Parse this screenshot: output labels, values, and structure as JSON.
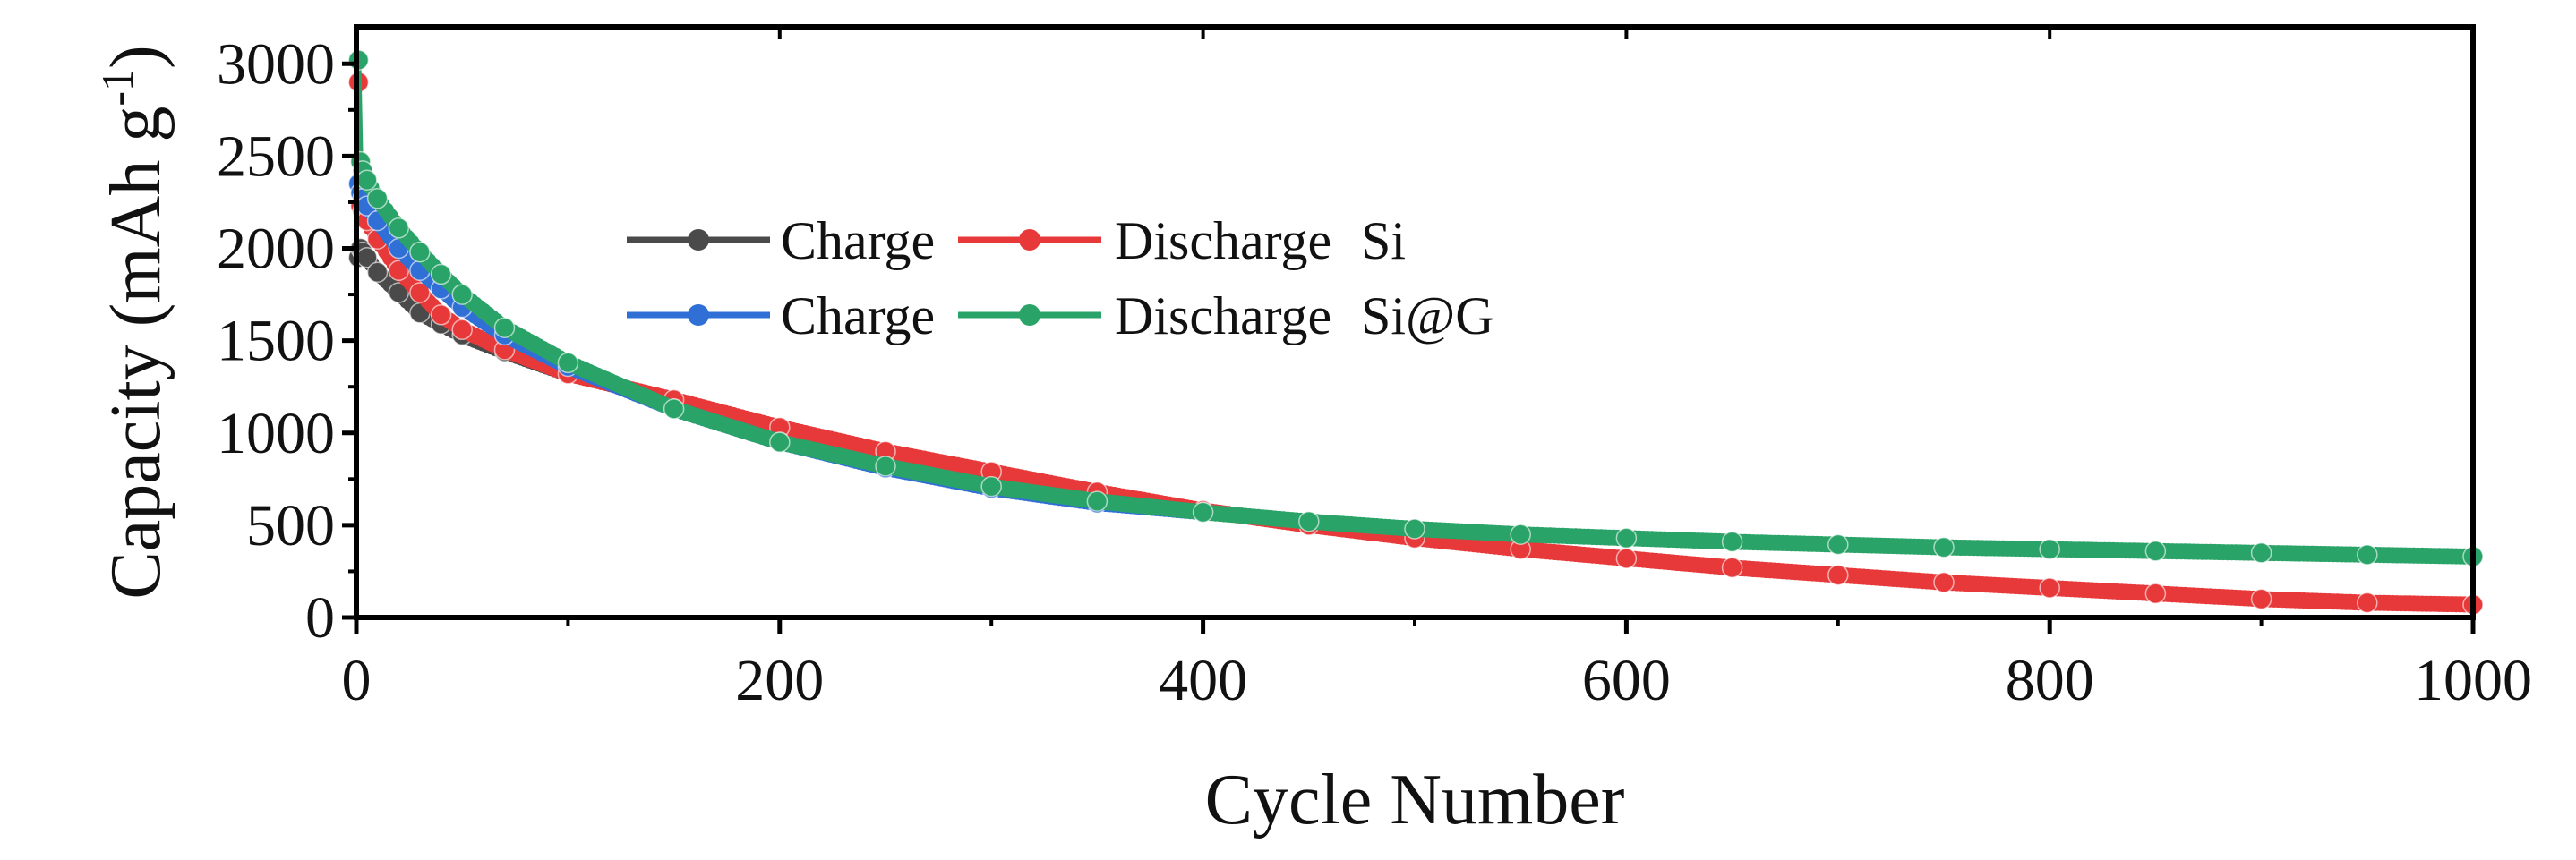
{
  "chart_data": {
    "type": "scatter",
    "title": "",
    "xlabel": "Cycle Number",
    "ylabel": {
      "main": "Capacity (mAh g",
      "sup": "-1",
      "close": ")"
    },
    "xlim": [
      0,
      1000
    ],
    "ylim": [
      0,
      3200
    ],
    "xticks": [
      0,
      200,
      400,
      600,
      800,
      1000
    ],
    "yticks": [
      0,
      500,
      1000,
      1500,
      2000,
      2500,
      3000
    ],
    "grid": false,
    "legend_position": "upper-left-center",
    "legend_groups": [
      {
        "label": "Si",
        "entries": [
          "Charge",
          "Discharge"
        ]
      },
      {
        "label": "Si@G",
        "entries": [
          "Charge",
          "Discharge"
        ]
      }
    ],
    "series": [
      {
        "name": "Charge Si",
        "color": "#4a4a4a",
        "x": [
          1,
          2,
          3,
          5,
          10,
          20,
          30,
          40,
          50,
          70,
          100
        ],
        "y": [
          1950,
          2000,
          1980,
          1950,
          1870,
          1760,
          1650,
          1590,
          1530,
          1440,
          1320
        ]
      },
      {
        "name": "Discharge Si",
        "color": "#e8393a",
        "x": [
          1,
          2,
          3,
          5,
          10,
          20,
          30,
          40,
          50,
          70,
          100,
          150,
          200,
          250,
          300,
          350,
          400,
          450,
          500,
          550,
          600,
          650,
          700,
          750,
          800,
          850,
          900,
          950,
          1000
        ],
        "y": [
          2900,
          2230,
          2200,
          2150,
          2050,
          1880,
          1760,
          1640,
          1560,
          1450,
          1320,
          1180,
          1030,
          900,
          790,
          680,
          580,
          500,
          430,
          370,
          320,
          270,
          230,
          190,
          160,
          130,
          100,
          80,
          70
        ]
      },
      {
        "name": "Charge Si@G",
        "color": "#2f6fd6",
        "x": [
          1,
          2,
          3,
          5,
          10,
          20,
          30,
          40,
          50,
          70,
          100,
          150,
          200,
          250,
          300,
          350,
          400
        ],
        "y": [
          2350,
          2300,
          2270,
          2230,
          2150,
          2000,
          1880,
          1780,
          1680,
          1530,
          1360,
          1130,
          950,
          810,
          700,
          620,
          570
        ]
      },
      {
        "name": "Discharge Si@G",
        "color": "#2aa368",
        "x": [
          1,
          2,
          3,
          5,
          10,
          20,
          30,
          40,
          50,
          70,
          100,
          150,
          200,
          250,
          300,
          350,
          400,
          450,
          500,
          550,
          600,
          650,
          700,
          750,
          800,
          850,
          900,
          950,
          1000
        ],
        "y": [
          3020,
          2470,
          2420,
          2370,
          2270,
          2110,
          1980,
          1860,
          1750,
          1570,
          1380,
          1130,
          950,
          820,
          710,
          630,
          570,
          520,
          480,
          450,
          430,
          410,
          395,
          380,
          370,
          360,
          350,
          340,
          330
        ]
      }
    ]
  }
}
